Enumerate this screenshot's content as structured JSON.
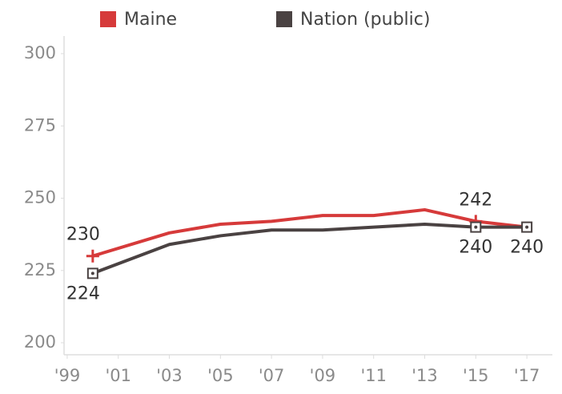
{
  "chart_data": {
    "type": "line",
    "x": [
      2000,
      2003,
      2005,
      2007,
      2009,
      2011,
      2013,
      2015,
      2017
    ],
    "series": [
      {
        "name": "Maine",
        "color": "#d63a3a",
        "marker": "plus",
        "values": [
          230,
          238,
          241,
          242,
          244,
          244,
          246,
          242,
          240
        ],
        "value_labels": [
          "230",
          null,
          null,
          null,
          null,
          null,
          null,
          "242",
          null
        ]
      },
      {
        "name": "Nation (public)",
        "color": "#4a4242",
        "marker": "square",
        "values": [
          224,
          234,
          237,
          239,
          239,
          240,
          241,
          240,
          240
        ],
        "value_labels": [
          "224",
          null,
          null,
          null,
          null,
          null,
          null,
          "240",
          "240"
        ]
      }
    ],
    "xlim": [
      1998.5,
      2018
    ],
    "xticks": [
      {
        "value": 1999,
        "label": "'99"
      },
      {
        "value": 2001,
        "label": "'01"
      },
      {
        "value": 2003,
        "label": "'03"
      },
      {
        "value": 2005,
        "label": "'05"
      },
      {
        "value": 2007,
        "label": "'07"
      },
      {
        "value": 2009,
        "label": "'09"
      },
      {
        "value": 2011,
        "label": "'11"
      },
      {
        "value": 2013,
        "label": "'13"
      },
      {
        "value": 2015,
        "label": "'15"
      },
      {
        "value": 2017,
        "label": "'17"
      }
    ],
    "ylim": [
      200,
      300
    ],
    "yticks": [
      200,
      225,
      250,
      275,
      300
    ],
    "grid": false,
    "legend": "top"
  }
}
